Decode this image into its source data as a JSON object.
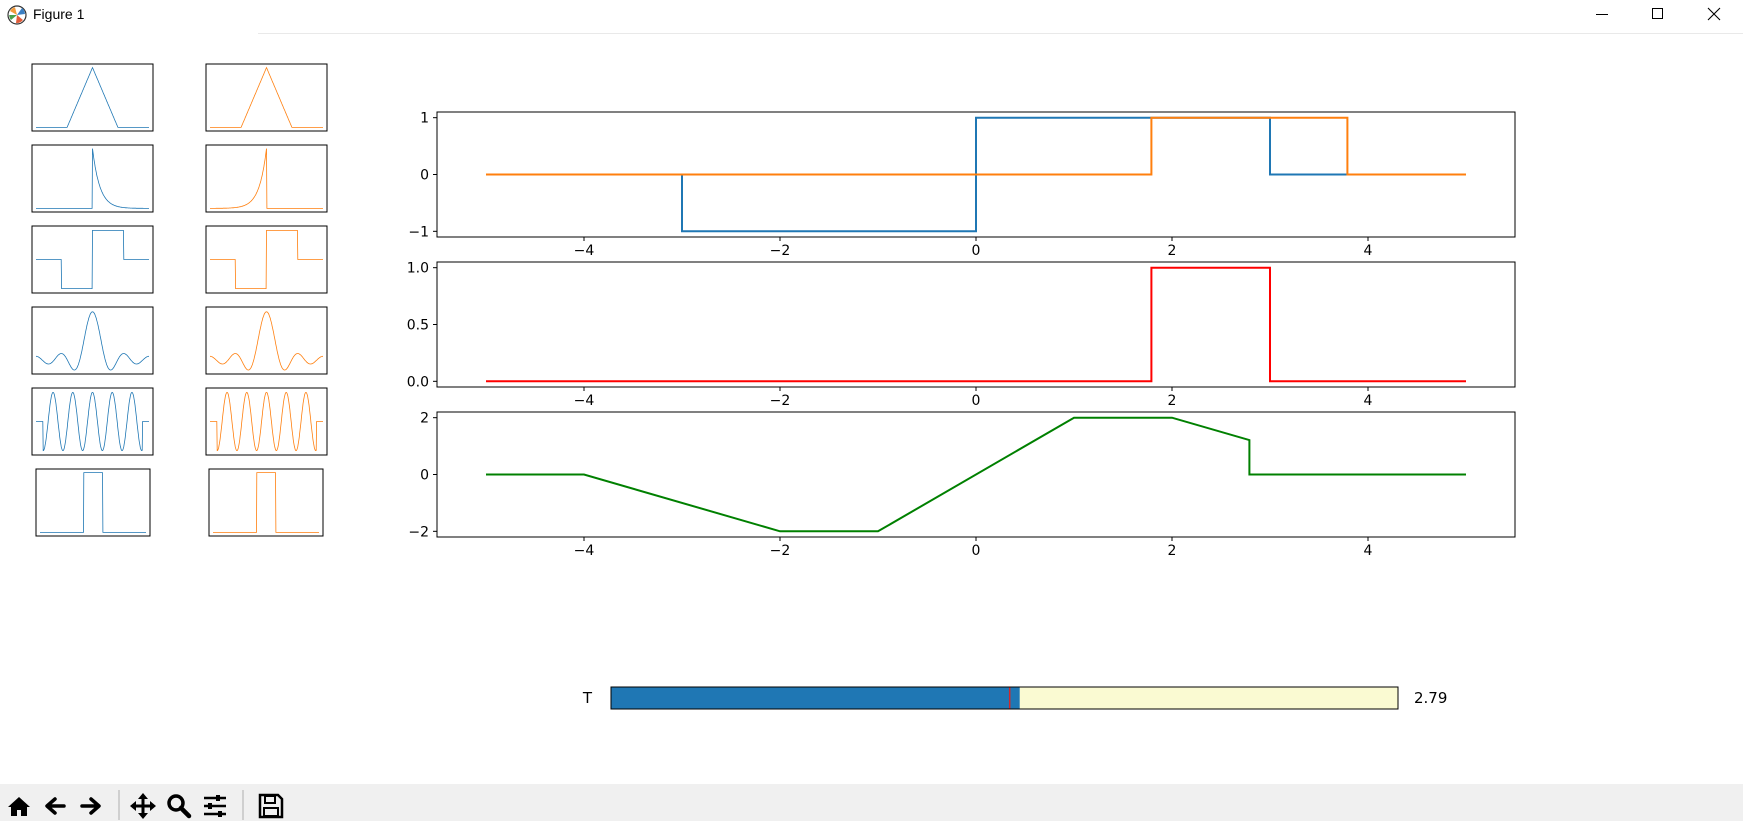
{
  "window": {
    "title": "Figure 1",
    "icon": "matplotlib-logo-icon",
    "controls": [
      "minimize-icon",
      "maximize-icon",
      "close-icon"
    ]
  },
  "colors": {
    "blue": "#1f77b4",
    "orange": "#ff7f0e",
    "red": "#ff0000",
    "green": "#008000",
    "slider_track": "#fafad2",
    "slider_marker": "#d62728"
  },
  "thumbnails": {
    "rows": [
      "triangle",
      "exponential",
      "rectangle-pair",
      "sinc",
      "cosine-burst",
      "rectangle"
    ],
    "left_color": "#1f77b4",
    "right_color": "#ff7f0e"
  },
  "slider": {
    "label": "T",
    "value_text": "2.79",
    "value": 2.79,
    "min": -5,
    "max": 10,
    "marker_value": 2.6
  },
  "chart_data": [
    {
      "type": "line",
      "xlim": [
        -5.5,
        5.5
      ],
      "ylim": [
        -1.1,
        1.1
      ],
      "xticks": [
        "−4",
        "−2",
        "0",
        "2",
        "4"
      ],
      "yticks": [
        "1",
        "0",
        "−1"
      ],
      "series": [
        {
          "color": "#1f77b4",
          "x": [
            -5,
            -3,
            -3,
            0,
            0,
            3,
            3,
            5
          ],
          "y": [
            0,
            0,
            -1,
            -1,
            1,
            1,
            0,
            0
          ]
        },
        {
          "color": "#ff7f0e",
          "x": [
            -5,
            1.79,
            1.79,
            3.79,
            3.79,
            5
          ],
          "y": [
            0,
            0,
            1,
            1,
            0,
            0
          ]
        }
      ]
    },
    {
      "type": "line",
      "xlim": [
        -5.5,
        5.5
      ],
      "ylim": [
        -0.05,
        1.05
      ],
      "xticks": [
        "−4",
        "−2",
        "0",
        "2",
        "4"
      ],
      "yticks": [
        "1.0",
        "0.5",
        "0.0"
      ],
      "series": [
        {
          "color": "#ff0000",
          "x": [
            -5,
            1.79,
            1.79,
            3,
            3,
            5
          ],
          "y": [
            0,
            0,
            1,
            1,
            0,
            0
          ]
        }
      ]
    },
    {
      "type": "line",
      "xlim": [
        -5.5,
        5.5
      ],
      "ylim": [
        -2.2,
        2.2
      ],
      "xticks": [
        "−4",
        "−2",
        "0",
        "2",
        "4"
      ],
      "yticks": [
        "2",
        "0",
        "−2"
      ],
      "series": [
        {
          "color": "#008000",
          "x": [
            -5,
            -4,
            -2,
            -1,
            1,
            2,
            2.79,
            2.79,
            5
          ],
          "y": [
            0,
            0,
            -2,
            -2,
            2,
            2,
            1.21,
            0,
            0
          ]
        }
      ]
    }
  ],
  "toolbar": {
    "buttons": [
      "home-icon",
      "back-icon",
      "forward-icon",
      "pan-icon",
      "zoom-icon",
      "configure-subplots-icon",
      "save-icon"
    ]
  }
}
